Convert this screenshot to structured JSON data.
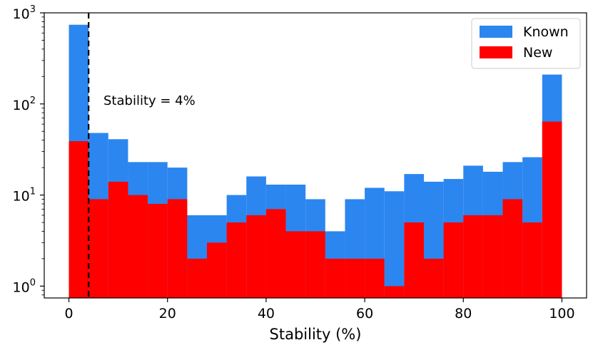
{
  "chart_data": {
    "type": "bar",
    "title": "",
    "xlabel": "Stability (%)",
    "ylabel": "",
    "xlim": [
      -5,
      105
    ],
    "ylim_exponent": [
      -0.13,
      3
    ],
    "y_scale": "log",
    "x_ticks": [
      "0",
      "20",
      "40",
      "60",
      "80",
      "100"
    ],
    "x_tick_values": [
      0,
      20,
      40,
      60,
      80,
      100
    ],
    "y_ticks": [
      {
        "base": "10",
        "exp": "0",
        "value": 1
      },
      {
        "base": "10",
        "exp": "1",
        "value": 10
      },
      {
        "base": "10",
        "exp": "2",
        "value": 100
      },
      {
        "base": "10",
        "exp": "3",
        "value": 1000
      }
    ],
    "bin_width": 4,
    "bin_starts": [
      0,
      4,
      8,
      12,
      16,
      20,
      24,
      28,
      32,
      36,
      40,
      44,
      48,
      52,
      56,
      60,
      64,
      68,
      72,
      76,
      80,
      84,
      88,
      92,
      96
    ],
    "series": [
      {
        "name": "Known",
        "color": "#2b86f0",
        "values": [
          740,
          48,
          41,
          23,
          23,
          20,
          6,
          6,
          10,
          16,
          13,
          13,
          9,
          4,
          9,
          12,
          11,
          17,
          14,
          15,
          21,
          18,
          23,
          26,
          210
        ]
      },
      {
        "name": "New",
        "color": "#ff0000",
        "values": [
          39,
          9,
          14,
          10,
          8,
          9,
          2,
          3,
          5,
          6,
          7,
          4,
          4,
          2,
          2,
          2,
          1,
          5,
          2,
          5,
          6,
          6,
          9,
          5,
          64
        ]
      }
    ],
    "legend_position": "top-right",
    "grid": false,
    "annotations": [
      {
        "text": "Stability = 4%",
        "x": 4,
        "style": "dashed-vertical-line"
      }
    ]
  }
}
